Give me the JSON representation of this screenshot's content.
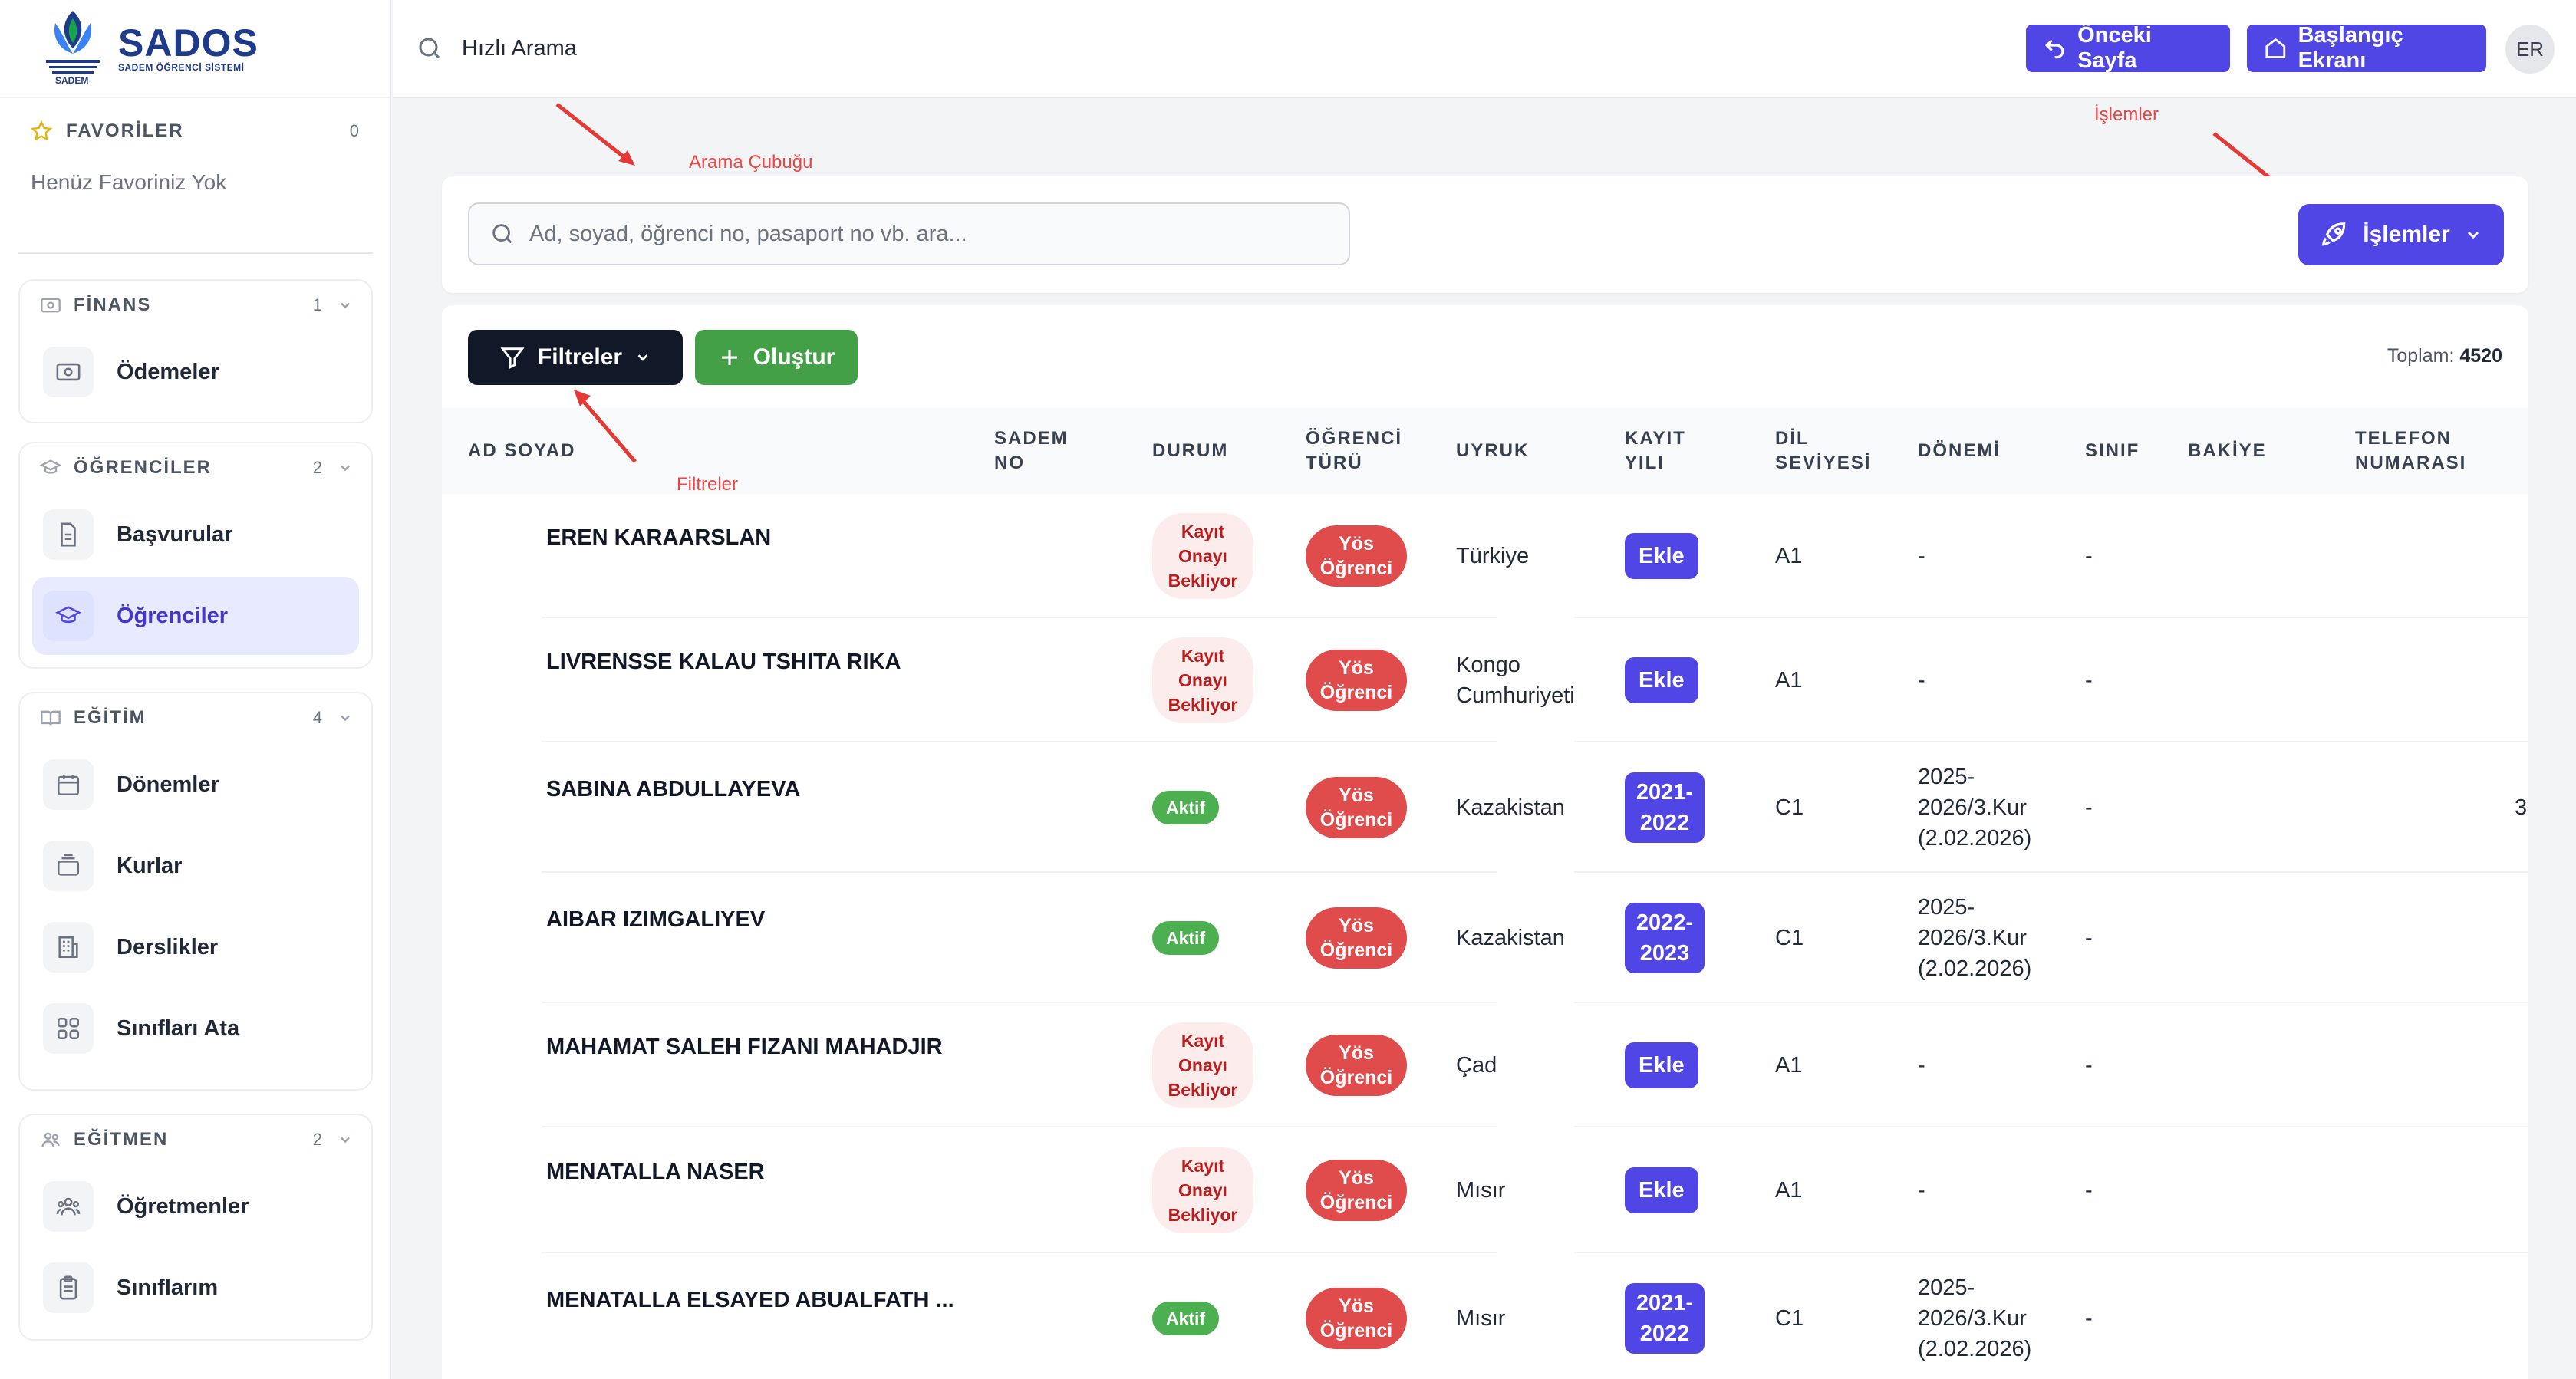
{
  "logo": {
    "title": "SADOS",
    "subtitle": "SADEM ÖĞRENCİ SİSTEMİ",
    "emblem_text": "SADEM"
  },
  "sidebar": {
    "favorites": {
      "title": "FAVORİLER",
      "count": "0",
      "empty": "Henüz Favoriniz Yok"
    },
    "groups": [
      {
        "title": "FİNANS",
        "count": "1",
        "items": [
          {
            "label": "Ödemeler"
          }
        ]
      },
      {
        "title": "ÖĞRENCİLER",
        "count": "2",
        "items": [
          {
            "label": "Başvurular"
          },
          {
            "label": "Öğrenciler"
          }
        ]
      },
      {
        "title": "EĞİTİM",
        "count": "4",
        "items": [
          {
            "label": "Dönemler"
          },
          {
            "label": "Kurlar"
          },
          {
            "label": "Derslikler"
          },
          {
            "label": "Sınıfları Ata"
          }
        ]
      },
      {
        "title": "EĞİTMEN",
        "count": "2",
        "items": [
          {
            "label": "Öğretmenler"
          },
          {
            "label": "Sınıflarım"
          }
        ]
      }
    ]
  },
  "topbar": {
    "quick_search": "Hızlı Arama",
    "prev_page": "Önceki Sayfa",
    "home": "Başlangıç Ekranı",
    "avatar": "ER"
  },
  "annotations": {
    "search": "Arama Çubuğu",
    "operations": "İşlemler",
    "filters": "Filtreler"
  },
  "search": {
    "placeholder": "Ad, soyad, öğrenci no, pasaport no vb. ara..."
  },
  "operations_button": "İşlemler",
  "toolbar": {
    "filters": "Filtreler",
    "create": "Oluştur",
    "total_label": "Toplam:",
    "total_value": "4520"
  },
  "table": {
    "columns": [
      "AD SOYAD",
      "SADEM\nNO",
      "DURUM",
      "ÖĞRENCİ\nTÜRÜ",
      "UYRUK",
      "KAYIT\nYILI",
      "DİL\nSEVİYESİ",
      "DÖNEMİ",
      "SINIF",
      "BAKİYE",
      "TELEFON\nNUMARASI"
    ],
    "rows": [
      {
        "name": "EREN KARAARSLAN",
        "status": "Kayıt Onayı Bekliyor",
        "status_type": "pending",
        "type": "Yös Öğrenci",
        "nationality": "Türkiye",
        "year": "Ekle",
        "lang": "A1",
        "period": "-",
        "class": "-"
      },
      {
        "name": "LIVRENSSE KALAU TSHITA RIKA",
        "status": "Kayıt Onayı Bekliyor",
        "status_type": "pending",
        "type": "Yös Öğrenci",
        "nationality": "Kongo Cumhuriyeti",
        "year": "Ekle",
        "lang": "A1",
        "period": "-",
        "class": "-"
      },
      {
        "name": "SABINA ABDULLAYEVA",
        "status": "Aktif",
        "status_type": "active",
        "type": "Yös Öğrenci",
        "nationality": "Kazakistan",
        "year": "2021-2022",
        "lang": "C1",
        "period": "2025-2026/3.Kur (2.02.2026)",
        "class": "-",
        "phone": "3"
      },
      {
        "name": "AIBAR IZIMGALIYEV",
        "status": "Aktif",
        "status_type": "active",
        "type": "Yös Öğrenci",
        "nationality": "Kazakistan",
        "year": "2022-2023",
        "lang": "C1",
        "period": "2025-2026/3.Kur (2.02.2026)",
        "class": "-"
      },
      {
        "name": "MAHAMAT SALEH FIZANI MAHADJIR",
        "status": "Kayıt Onayı Bekliyor",
        "status_type": "pending",
        "type": "Yös Öğrenci",
        "nationality": "Çad",
        "year": "Ekle",
        "lang": "A1",
        "period": "-",
        "class": "-"
      },
      {
        "name": "MENATALLA NASER",
        "status": "Kayıt Onayı Bekliyor",
        "status_type": "pending",
        "type": "Yös Öğrenci",
        "nationality": "Mısır",
        "year": "Ekle",
        "lang": "A1",
        "period": "-",
        "class": "-"
      },
      {
        "name": "MENATALLA ELSAYED ABUALFATH ...",
        "status": "Aktif",
        "status_type": "active",
        "type": "Yös Öğrenci",
        "nationality": "Mısır",
        "year": "2021-2022",
        "lang": "C1",
        "period": "2025-2026/3.Kur (2.02.2026)",
        "class": "-"
      }
    ]
  }
}
